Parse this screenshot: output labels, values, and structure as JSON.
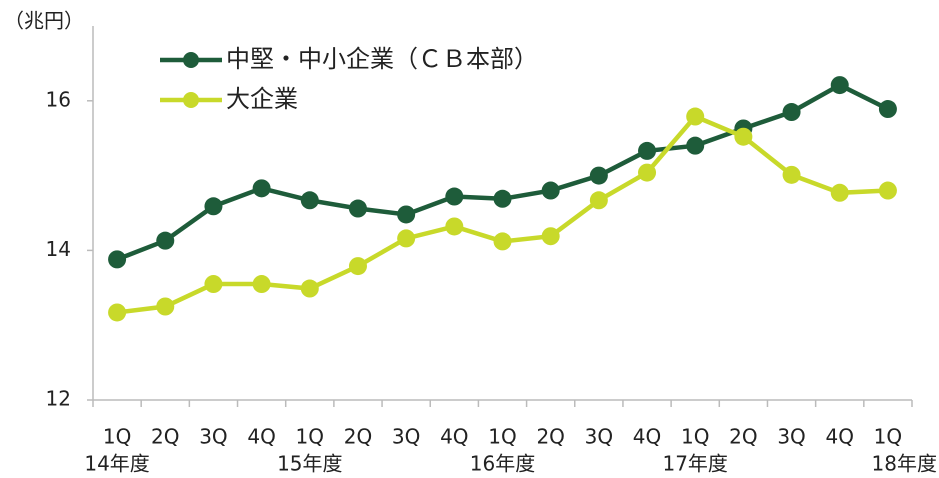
{
  "chart_data": {
    "type": "line",
    "unit_label": "（兆円）",
    "categories": [
      "1Q",
      "2Q",
      "3Q",
      "4Q",
      "1Q",
      "2Q",
      "3Q",
      "4Q",
      "1Q",
      "2Q",
      "3Q",
      "4Q",
      "1Q",
      "2Q",
      "3Q",
      "4Q",
      "1Q"
    ],
    "year_labels": [
      "14年度",
      null,
      null,
      null,
      "15年度",
      null,
      null,
      null,
      "16年度",
      null,
      null,
      null,
      "17年度",
      null,
      null,
      null,
      "18年度"
    ],
    "series": [
      {
        "name": "中堅・中小企業（ＣＢ本部）",
        "color": "#1e5c3a",
        "values": [
          13.88,
          14.13,
          14.59,
          14.83,
          14.67,
          14.56,
          14.48,
          14.72,
          14.69,
          14.8,
          15.0,
          15.33,
          15.4,
          15.63,
          15.85,
          16.21,
          15.89
        ]
      },
      {
        "name": "大企業",
        "color": "#c8d92a",
        "values": [
          13.17,
          13.25,
          13.55,
          13.55,
          13.49,
          13.79,
          14.16,
          14.32,
          14.12,
          14.19,
          14.67,
          15.04,
          15.79,
          15.52,
          15.01,
          14.77,
          14.8
        ]
      }
    ],
    "ylim": [
      12,
      17
    ],
    "yticks": [
      12,
      14,
      16
    ],
    "legend": "top-left"
  }
}
